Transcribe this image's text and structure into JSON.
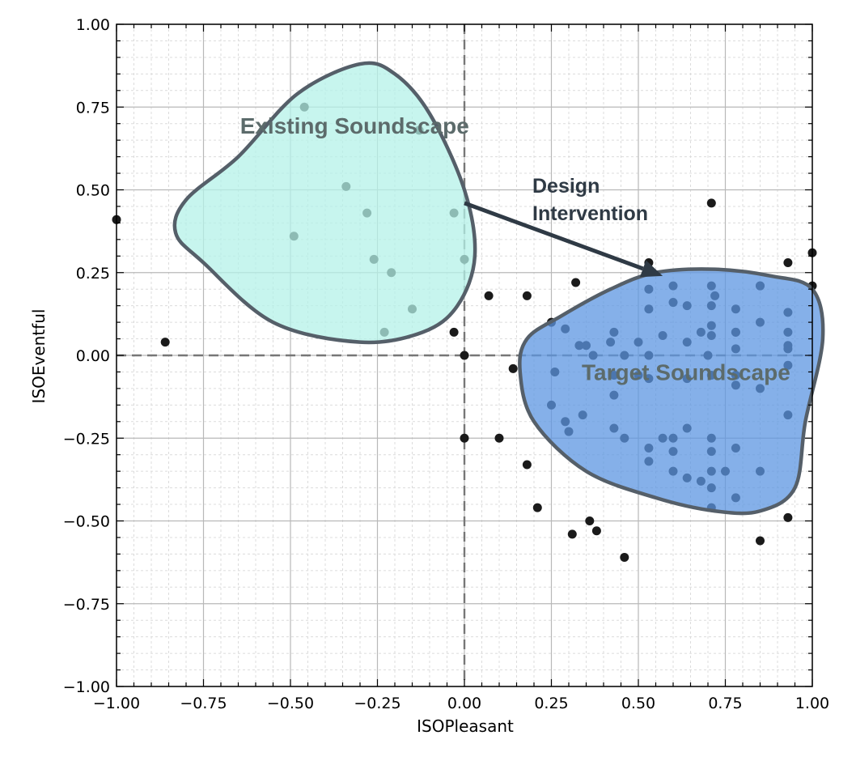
{
  "chart_data": {
    "type": "scatter",
    "title": "",
    "xlabel": "ISOPleasant",
    "ylabel": "ISOEventful",
    "xlim": [
      -1.0,
      1.0
    ],
    "ylim": [
      -1.0,
      1.0
    ],
    "xticks": [
      -1.0,
      -0.75,
      -0.5,
      -0.25,
      0.0,
      0.25,
      0.5,
      0.75,
      1.0
    ],
    "yticks": [
      -1.0,
      -0.75,
      -0.5,
      -0.25,
      0.0,
      0.25,
      0.5,
      0.75,
      1.0
    ],
    "xtick_labels": [
      "−1.00",
      "−0.75",
      "−0.50",
      "−0.25",
      "0.00",
      "0.25",
      "0.50",
      "0.75",
      "1.00"
    ],
    "ytick_labels": [
      "−1.00",
      "−0.75",
      "−0.50",
      "−0.25",
      "0.00",
      "0.25",
      "0.50",
      "0.75",
      "1.00"
    ],
    "grid": true,
    "minor_grid": true,
    "reference_lines": [
      {
        "axis": "x",
        "value": 0.0
      },
      {
        "axis": "y",
        "value": 0.0
      }
    ],
    "colors": {
      "point": "#1a1a1a",
      "existing_fill": "#b4f2e8",
      "target_fill": "#5c95e2",
      "region_edge": "#555f69",
      "arrow": "#2f3a45",
      "grid_major": "#b8b8b8",
      "grid_minor": "#dcdcdc"
    },
    "regions": [
      {
        "label": "Existing Soundscape",
        "fill": "#b4f2e8",
        "outline": [
          [
            -0.3,
            0.88
          ],
          [
            -0.2,
            0.85
          ],
          [
            -0.1,
            0.73
          ],
          [
            0.0,
            0.5
          ],
          [
            0.03,
            0.3
          ],
          [
            -0.02,
            0.15
          ],
          [
            -0.12,
            0.07
          ],
          [
            -0.3,
            0.04
          ],
          [
            -0.55,
            0.1
          ],
          [
            -0.75,
            0.28
          ],
          [
            -0.83,
            0.37
          ],
          [
            -0.8,
            0.47
          ],
          [
            -0.65,
            0.6
          ],
          [
            -0.48,
            0.79
          ]
        ]
      },
      {
        "label": "Target Soundscape",
        "fill": "#5c95e2",
        "outline": [
          [
            0.72,
            0.26
          ],
          [
            0.88,
            0.24
          ],
          [
            1.0,
            0.2
          ],
          [
            1.03,
            0.05
          ],
          [
            0.98,
            -0.2
          ],
          [
            0.95,
            -0.4
          ],
          [
            0.85,
            -0.47
          ],
          [
            0.72,
            -0.47
          ],
          [
            0.55,
            -0.43
          ],
          [
            0.35,
            -0.35
          ],
          [
            0.2,
            -0.2
          ],
          [
            0.16,
            -0.05
          ],
          [
            0.18,
            0.05
          ],
          [
            0.28,
            0.12
          ],
          [
            0.42,
            0.2
          ],
          [
            0.55,
            0.25
          ]
        ]
      }
    ],
    "annotation": {
      "lines": [
        "Design",
        "Intervention"
      ],
      "arrow_from": [
        0.0,
        0.46
      ],
      "arrow_to": [
        0.57,
        0.24
      ]
    },
    "points": {
      "x": [
        -1.0,
        -0.86,
        -0.46,
        -0.34,
        -0.28,
        -0.49,
        -0.26,
        -0.21,
        -0.23,
        -0.15,
        -0.13,
        -0.03,
        0.0,
        -0.03,
        0.0,
        0.0,
        0.07,
        0.14,
        0.18,
        0.1,
        0.18,
        0.21,
        0.31,
        0.36,
        0.38,
        0.46,
        0.32,
        0.71,
        0.53,
        0.93,
        1.0,
        1.0,
        0.53,
        0.6,
        0.71,
        0.72,
        0.85,
        0.93,
        0.57,
        0.68,
        0.78,
        0.85,
        0.93,
        0.43,
        0.5,
        0.71,
        0.78,
        0.93,
        0.25,
        0.33,
        0.37,
        0.42,
        0.46,
        0.53,
        0.64,
        0.7,
        0.78,
        0.93,
        0.25,
        0.29,
        0.34,
        0.43,
        0.64,
        0.71,
        0.85,
        0.93,
        0.3,
        0.43,
        0.46,
        0.53,
        0.6,
        0.71,
        0.78,
        0.53,
        0.6,
        0.71,
        0.85,
        0.6,
        0.64,
        0.68,
        0.71,
        0.75,
        0.78,
        0.71,
        0.93,
        0.85,
        0.26,
        0.43,
        0.35,
        0.29,
        0.53,
        0.57,
        0.53,
        0.78,
        0.85,
        0.71,
        0.93,
        0.78,
        0.71,
        0.64,
        0.5,
        0.6,
        0.71,
        0.64,
        0.78
      ],
      "y": [
        0.41,
        0.04,
        0.75,
        0.51,
        0.43,
        0.36,
        0.29,
        0.25,
        0.07,
        0.14,
        0.68,
        0.43,
        0.29,
        0.07,
        0.0,
        -0.25,
        0.18,
        -0.04,
        0.18,
        -0.25,
        -0.33,
        -0.46,
        -0.54,
        -0.5,
        -0.53,
        -0.61,
        0.22,
        0.46,
        0.28,
        0.28,
        0.31,
        0.21,
        0.2,
        0.21,
        0.21,
        0.18,
        0.21,
        0.13,
        0.06,
        0.07,
        0.14,
        0.1,
        0.07,
        0.07,
        0.04,
        0.06,
        0.07,
        0.03,
        0.1,
        0.03,
        0.0,
        0.04,
        0.0,
        0.0,
        0.04,
        0.0,
        0.02,
        -0.03,
        -0.15,
        -0.2,
        -0.18,
        -0.12,
        -0.07,
        -0.06,
        -0.1,
        -0.18,
        -0.23,
        -0.22,
        -0.25,
        -0.28,
        -0.25,
        -0.25,
        -0.28,
        -0.32,
        -0.35,
        -0.35,
        -0.35,
        -0.29,
        -0.37,
        -0.38,
        -0.4,
        -0.35,
        -0.43,
        -0.46,
        -0.49,
        -0.56,
        -0.05,
        -0.06,
        0.03,
        0.08,
        0.14,
        -0.25,
        -0.07,
        -0.06,
        0.21,
        0.15,
        0.02,
        -0.09,
        -0.29,
        -0.22,
        -0.06,
        0.16,
        0.09,
        0.15,
        0.07
      ]
    },
    "region_labels_ref": "regions[].label"
  }
}
